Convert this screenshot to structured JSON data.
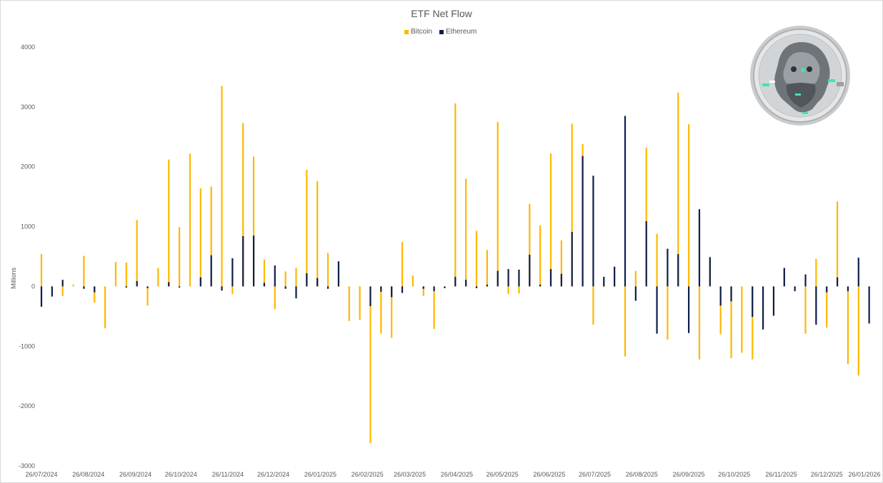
{
  "colors": {
    "bitcoin": "#FFB800",
    "ethereum": "#0C1E4E",
    "text": "#595959"
  },
  "logo": {
    "icon": "bearded-face-coin-icon"
  },
  "chart_data": {
    "type": "bar",
    "title": "ETF Net Flow",
    "ylabel": "Millions",
    "xlabel": "",
    "ylim": [
      -3000,
      4000
    ],
    "yticks": [
      -3000,
      -2000,
      -1000,
      0,
      1000,
      2000,
      3000,
      4000
    ],
    "legend_position": "top-center",
    "grid": false,
    "xlim": [
      "2024-07-26",
      "2026-01-26"
    ],
    "xticks": [
      "26/07/2024",
      "26/08/2024",
      "26/09/2024",
      "26/10/2024",
      "26/11/2024",
      "26/12/2024",
      "26/01/2025",
      "26/02/2025",
      "26/03/2025",
      "26/04/2025",
      "26/05/2025",
      "26/06/2025",
      "26/07/2025",
      "26/08/2025",
      "26/09/2025",
      "26/10/2025",
      "26/11/2025",
      "26/12/2025",
      "26/01/2026"
    ],
    "x": [
      "2024-07-26",
      "2024-08-02",
      "2024-08-09",
      "2024-08-16",
      "2024-08-23",
      "2024-08-30",
      "2024-09-06",
      "2024-09-13",
      "2024-09-20",
      "2024-09-27",
      "2024-10-04",
      "2024-10-11",
      "2024-10-18",
      "2024-10-25",
      "2024-11-01",
      "2024-11-08",
      "2024-11-15",
      "2024-11-22",
      "2024-11-29",
      "2024-12-06",
      "2024-12-13",
      "2024-12-20",
      "2024-12-27",
      "2025-01-03",
      "2025-01-10",
      "2025-01-17",
      "2025-01-24",
      "2025-01-31",
      "2025-02-07",
      "2025-02-14",
      "2025-02-21",
      "2025-02-28",
      "2025-03-07",
      "2025-03-14",
      "2025-03-21",
      "2025-03-28",
      "2025-04-04",
      "2025-04-11",
      "2025-04-18",
      "2025-04-25",
      "2025-05-02",
      "2025-05-09",
      "2025-05-16",
      "2025-05-23",
      "2025-05-30",
      "2025-06-06",
      "2025-06-13",
      "2025-06-20",
      "2025-06-27",
      "2025-07-04",
      "2025-07-11",
      "2025-07-18",
      "2025-07-25",
      "2025-08-01",
      "2025-08-08",
      "2025-08-15",
      "2025-08-22",
      "2025-08-29",
      "2025-09-05",
      "2025-09-12",
      "2025-09-19",
      "2025-09-26",
      "2025-10-03",
      "2025-10-10",
      "2025-10-17",
      "2025-10-24",
      "2025-10-31",
      "2025-11-07",
      "2025-11-14",
      "2025-11-21",
      "2025-11-28",
      "2025-12-05",
      "2025-12-12",
      "2025-12-19",
      "2025-12-26",
      "2026-01-02",
      "2026-01-09",
      "2026-01-16",
      "2026-01-23"
    ],
    "series": [
      {
        "name": "Bitcoin",
        "values": [
          540,
          -20,
          -160,
          30,
          510,
          -270,
          -700,
          410,
          400,
          1110,
          -320,
          310,
          2120,
          990,
          2220,
          1640,
          1670,
          3350,
          -130,
          2730,
          2170,
          450,
          -380,
          250,
          310,
          1950,
          1760,
          560,
          -10,
          -580,
          -560,
          -2620,
          -790,
          -860,
          740,
          180,
          -160,
          -710,
          0,
          3060,
          1800,
          930,
          610,
          2750,
          -130,
          -120,
          1380,
          1020,
          2220,
          770,
          2720,
          2380,
          -640,
          -10,
          -10,
          -1170,
          260,
          2320,
          880,
          -890,
          3240,
          2710,
          -1220,
          440,
          -800,
          -1200,
          -1110,
          -1220,
          -10,
          -70,
          290,
          -10,
          -790,
          460,
          -690,
          1420,
          -1300,
          -1490,
          0
        ]
      },
      {
        "name": "Ethereum",
        "values": [
          -340,
          -170,
          110,
          0,
          -40,
          -100,
          0,
          0,
          -20,
          90,
          -30,
          0,
          70,
          -20,
          0,
          150,
          520,
          -70,
          470,
          840,
          850,
          60,
          350,
          -40,
          -200,
          220,
          140,
          -40,
          420,
          0,
          0,
          -330,
          -90,
          -180,
          -110,
          0,
          -40,
          -80,
          -30,
          160,
          110,
          -30,
          30,
          260,
          290,
          280,
          530,
          30,
          290,
          210,
          910,
          2180,
          1850,
          160,
          330,
          2850,
          -240,
          1090,
          -790,
          630,
          540,
          -780,
          1290,
          490,
          -320,
          -250,
          0,
          -510,
          -720,
          -490,
          310,
          -80,
          200,
          -640,
          -100,
          150,
          -80,
          480,
          -620
        ]
      }
    ]
  }
}
